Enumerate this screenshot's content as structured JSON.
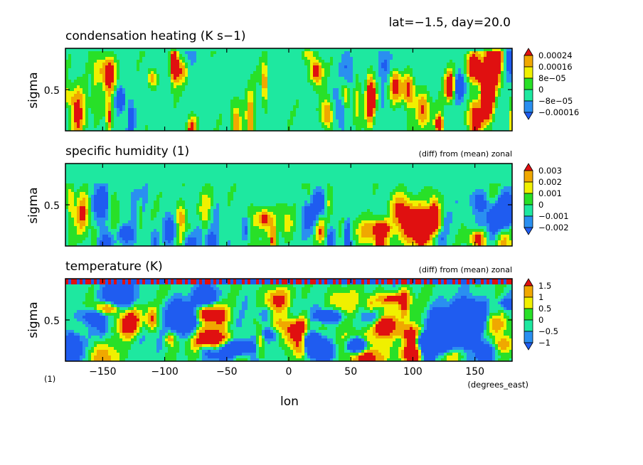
{
  "header": {
    "lat_day": "lat=−1.5, day=20.0"
  },
  "colors": {
    "levels": [
      "#1f5cf0",
      "#2a8ff0",
      "#1ee8a0",
      "#28e028",
      "#f0f000",
      "#f0a800",
      "#e01010"
    ]
  },
  "chart_data": [
    {
      "type": "heatmap",
      "title": "condensation heating (K s−1)",
      "subtitle": "",
      "ylabel": "sigma",
      "ytick_labels": [
        "0.5"
      ],
      "xlim": [
        -180,
        180
      ],
      "ylim": [
        0,
        1
      ],
      "colorbar_labels": [
        "0.00024",
        "0.00016",
        "8e−05",
        "0",
        "−8e−05",
        "−0.00016"
      ],
      "colorbar_values": [
        0.00024,
        0.00016,
        8e-05,
        0,
        -8e-05,
        -0.00016
      ]
    },
    {
      "type": "heatmap",
      "title": "specific humidity (1)",
      "subtitle": "(diff) from (mean) zonal",
      "ylabel": "sigma",
      "ytick_labels": [
        "0.5"
      ],
      "xlim": [
        -180,
        180
      ],
      "ylim": [
        0,
        1
      ],
      "colorbar_labels": [
        "0.003",
        "0.002",
        "0.001",
        "0",
        "−0.001",
        "−0.002"
      ],
      "colorbar_values": [
        0.003,
        0.002,
        0.001,
        0,
        -0.001,
        -0.002
      ]
    },
    {
      "type": "heatmap",
      "title": "temperature (K)",
      "subtitle": "(diff) from (mean) zonal",
      "ylabel": "sigma",
      "ytick_labels": [
        "0.5"
      ],
      "xlim": [
        -180,
        180
      ],
      "ylim": [
        0,
        1
      ],
      "colorbar_labels": [
        "1.5",
        "1",
        "0.5",
        "0",
        "−0.5",
        "−1"
      ],
      "colorbar_values": [
        1.5,
        1,
        0.5,
        0,
        -0.5,
        -1
      ]
    }
  ],
  "x_axis": {
    "ticks": [
      -150,
      -100,
      -50,
      0,
      50,
      100,
      150
    ],
    "tick_labels": [
      "−150",
      "−100",
      "−50",
      "0",
      "50",
      "100",
      "150"
    ],
    "label": "lon",
    "units": "(degrees_east)",
    "corner_note": "(1)"
  }
}
